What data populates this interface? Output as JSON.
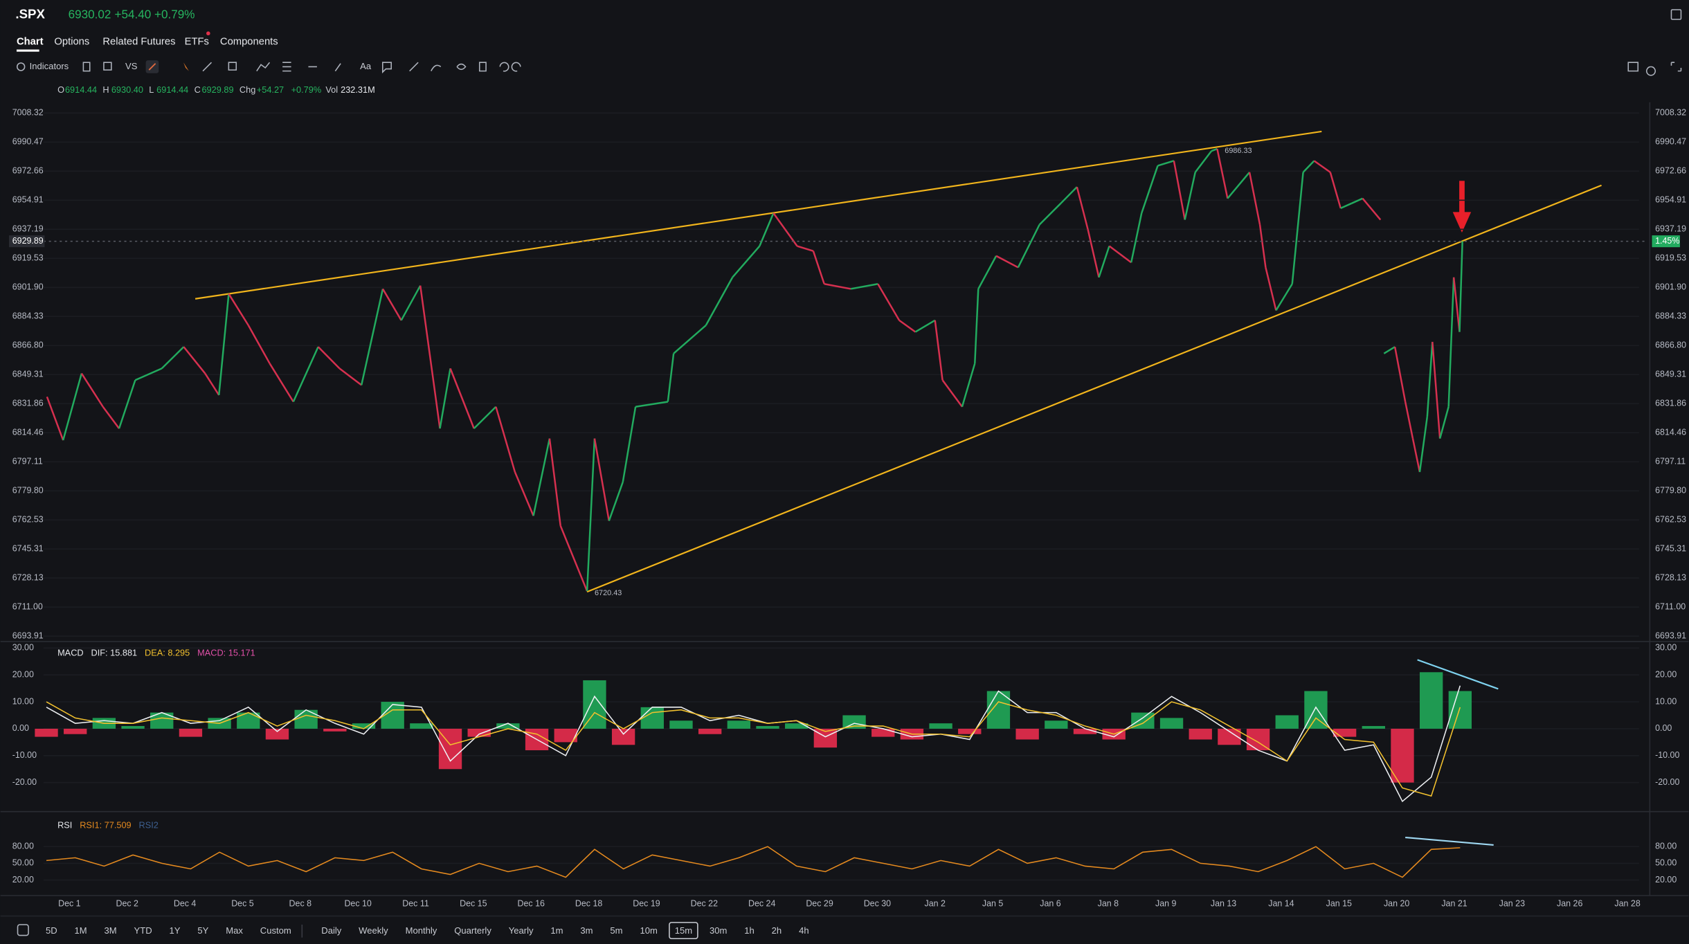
{
  "header": {
    "symbol": ".SPX",
    "price": "6930.02",
    "change": "+54.40",
    "change_pct": "+0.79%"
  },
  "tabs": [
    "Chart",
    "Options",
    "Related Futures",
    "ETFs",
    "Components"
  ],
  "toolbar": {
    "indicators": "Indicators",
    "compare": "VS",
    "text_tool": "Aa"
  },
  "ohlc": {
    "o_label": "O",
    "o": "6914.44",
    "h_label": "H",
    "h": "6930.40",
    "l_label": "L",
    "l": "6914.44",
    "c_label": "C",
    "c": "6929.89",
    "chg_label": "Chg",
    "chg": "+54.27",
    "chg_pct": "+0.79%",
    "vol_label": "Vol",
    "vol": "232.31M"
  },
  "ranges": [
    "5D",
    "1M",
    "3M",
    "YTD",
    "1Y",
    "5Y",
    "Max",
    "Custom"
  ],
  "periods": [
    "Daily",
    "Weekly",
    "Monthly",
    "Quarterly",
    "Yearly",
    "1m",
    "3m",
    "5m",
    "10m",
    "15m",
    "30m",
    "1h",
    "2h",
    "4h"
  ],
  "selected_period": "15m",
  "chart_data": [
    {
      "type": "line",
      "log_scale": true,
      "grid": true,
      "up_color": "#22ab5f",
      "down_color": "#d6304f",
      "xlim": [
        -0.45,
        27.35
      ],
      "xticks": [
        {
          "value": 0,
          "label": "Dec 1"
        },
        {
          "value": 1,
          "label": "Dec 2"
        },
        {
          "value": 2,
          "label": "Dec 4"
        },
        {
          "value": 3,
          "label": "Dec 5"
        },
        {
          "value": 4,
          "label": "Dec 8"
        },
        {
          "value": 5,
          "label": "Dec 10"
        },
        {
          "value": 6,
          "label": "Dec 11"
        },
        {
          "value": 7,
          "label": "Dec 15"
        },
        {
          "value": 8,
          "label": "Dec 16"
        },
        {
          "value": 9,
          "label": "Dec 18"
        },
        {
          "value": 10,
          "label": "Dec 19"
        },
        {
          "value": 11,
          "label": "Dec 22"
        },
        {
          "value": 12,
          "label": "Dec 24"
        },
        {
          "value": 13,
          "label": "Dec 29"
        },
        {
          "value": 14,
          "label": "Dec 30"
        },
        {
          "value": 15,
          "label": "Jan 2"
        },
        {
          "value": 16,
          "label": "Jan 5"
        },
        {
          "value": 17,
          "label": "Jan 6"
        },
        {
          "value": 18,
          "label": "Jan 8"
        },
        {
          "value": 19,
          "label": "Jan 9"
        },
        {
          "value": 20,
          "label": "Jan 13"
        },
        {
          "value": 21,
          "label": "Jan 14"
        },
        {
          "value": 22,
          "label": "Jan 15"
        },
        {
          "value": 23,
          "label": "Jan 20"
        },
        {
          "value": 24,
          "label": "Jan 21"
        },
        {
          "value": 25,
          "label": "Jan 23"
        },
        {
          "value": 26,
          "label": "Jan 26"
        },
        {
          "value": 27,
          "label": "Jan 28"
        }
      ],
      "ylim": [
        6693.91,
        7008.32
      ],
      "yticks": [
        {
          "value": 7008.32,
          "label": "7008.32"
        },
        {
          "value": 6990.47,
          "label": "6990.47"
        },
        {
          "value": 6972.66,
          "label": "6972.66"
        },
        {
          "value": 6954.91,
          "label": "6954.91"
        },
        {
          "value": 6937.19,
          "label": "6937.19"
        },
        {
          "value": 6919.53,
          "label": "6919.53"
        },
        {
          "value": 6901.9,
          "label": "6901.90"
        },
        {
          "value": 6884.33,
          "label": "6884.33"
        },
        {
          "value": 6866.8,
          "label": "6866.80"
        },
        {
          "value": 6849.31,
          "label": "6849.31"
        },
        {
          "value": 6831.86,
          "label": "6831.86"
        },
        {
          "value": 6814.46,
          "label": "6814.46"
        },
        {
          "value": 6797.11,
          "label": "6797.11"
        },
        {
          "value": 6779.8,
          "label": "6779.80"
        },
        {
          "value": 6762.53,
          "label": "6762.53"
        },
        {
          "value": 6745.31,
          "label": "6745.31"
        },
        {
          "value": 6728.13,
          "label": "6728.13"
        },
        {
          "value": 6711.0,
          "label": "6711.00"
        },
        {
          "value": 6693.91,
          "label": "6693.91"
        }
      ],
      "x": [
        -0.39,
        -0.11,
        0.21,
        0.58,
        0.86,
        1.14,
        1.6,
        1.98,
        2.35,
        2.59,
        2.76,
        3.1,
        3.47,
        3.88,
        4.31,
        4.68,
        5.06,
        5.43,
        5.75,
        6.08,
        6.42,
        6.6,
        7.01,
        7.39,
        7.72,
        8.04,
        8.32,
        8.51,
        8.97,
        9.1,
        9.35,
        9.59,
        9.81,
        10.37,
        10.47,
        11.03,
        11.49,
        11.96,
        12.2,
        12.61,
        12.89,
        13.08,
        13.54,
        14.01,
        14.38,
        14.66,
        15.0,
        15.13,
        15.47,
        15.69,
        15.75,
        16.06,
        16.44,
        16.81,
        17.18,
        17.46,
        17.65,
        17.84,
        18.02,
        18.4,
        18.58,
        18.86,
        19.14,
        19.33,
        19.51,
        19.79,
        19.89,
        20.07,
        20.45,
        20.63,
        20.73,
        20.91,
        21.19,
        21.38,
        21.57,
        21.85,
        22.03,
        22.22,
        22.41,
        22.72,
        22.75,
        22.78,
        22.97,
        23.15,
        23.28,
        23.4,
        23.53,
        23.62,
        23.75,
        23.9,
        23.99,
        24.09,
        24.14
      ],
      "values": [
        6836,
        6810,
        6850,
        6830,
        6817,
        6846,
        6853,
        6866,
        6850,
        6837,
        6898,
        6879,
        6856,
        6833,
        6866,
        6853,
        6843,
        6901,
        6882,
        6903,
        6817,
        6853,
        6817,
        6830,
        6791,
        6765,
        6811,
        6759,
        6720.43,
        6811,
        6762,
        6785,
        6830,
        6833,
        6862,
        6879,
        6908,
        6927,
        6947,
        6927,
        6924,
        6904,
        6901,
        6904,
        6882,
        6875,
        6882,
        6846,
        6830,
        6856,
        6901,
        6921,
        6914,
        6940,
        6953,
        6963,
        6937,
        6908,
        6927,
        6917,
        6947,
        6976,
        6979,
        6943,
        6972,
        6985,
        6986.33,
        6956,
        6972,
        6940,
        6914,
        6888,
        6904,
        6972,
        6979,
        6972,
        6950,
        6953,
        6956,
        6943,
        null,
        6862,
        6866,
        6833,
        6811,
        6791,
        6824,
        6869,
        6811,
        6830,
        6908,
        6875,
        6929.89
      ],
      "point_labels": [
        {
          "value": 6720.43,
          "x": 8.97
        },
        {
          "value": 6986.33,
          "x": 19.89
        }
      ],
      "trendlines": [
        {
          "x": [
            2.18,
            21.7
          ],
          "y": [
            6895,
            6997
          ],
          "color": "#f2b51c"
        },
        {
          "x": [
            8.97,
            26.55
          ],
          "y": [
            6720,
            6964
          ],
          "color": "#f2b51c"
        }
      ],
      "last": {
        "value": 6929.89,
        "change_label": "1.45%"
      }
    },
    {
      "type": "macd",
      "grid": true,
      "xlim": [
        -0.45,
        27.35
      ],
      "ylim": [
        -30,
        32
      ],
      "yticks": [
        {
          "value": 30,
          "label": "30.00"
        },
        {
          "value": 20,
          "label": "20.00"
        },
        {
          "value": 10,
          "label": "10.00"
        },
        {
          "value": 0,
          "label": "0.00"
        },
        {
          "value": -10,
          "label": "-10.00"
        },
        {
          "value": -20,
          "label": "-20.00"
        }
      ],
      "legend": [
        {
          "text": "MACD",
          "color": "#e6e8ec"
        },
        {
          "text": "DIF: 15.881",
          "color": "#e6e8ec"
        },
        {
          "text": "DEA: 8.295",
          "color": "#f2c12e"
        },
        {
          "text": "MACD: 15.171",
          "color": "#e050a8"
        }
      ],
      "x": [
        -0.4,
        0.1,
        0.6,
        1.1,
        1.6,
        2.1,
        2.6,
        3.1,
        3.6,
        4.1,
        4.6,
        5.1,
        5.6,
        6.1,
        6.6,
        7.1,
        7.6,
        8.1,
        8.6,
        9.1,
        9.6,
        10.1,
        10.6,
        11.1,
        11.6,
        12.1,
        12.6,
        13.1,
        13.6,
        14.1,
        14.6,
        15.1,
        15.6,
        16.1,
        16.6,
        17.1,
        17.6,
        18.1,
        18.6,
        19.1,
        19.6,
        20.1,
        20.6,
        21.1,
        21.6,
        22.1,
        22.6,
        23.1,
        23.6,
        24.1
      ],
      "histogram": [
        -3,
        -2,
        4,
        1,
        6,
        -3,
        4,
        6,
        -4,
        7,
        -1,
        2,
        10,
        2,
        -15,
        -3,
        2,
        -8,
        -5,
        18,
        -6,
        8,
        3,
        -2,
        3,
        1,
        2,
        -7,
        5,
        -3,
        -4,
        2,
        -2,
        14,
        -4,
        3,
        -2,
        -4,
        6,
        4,
        -4,
        -6,
        -8,
        5,
        14,
        -3,
        1,
        -20,
        21,
        14
      ],
      "hist_up_color": "#1f9a52",
      "hist_down_color": "#d42a48",
      "series": [
        {
          "color": "#eef0f3",
          "values": [
            8,
            2,
            3,
            2,
            6,
            2,
            3,
            8,
            -1,
            7,
            2,
            -2,
            9,
            8,
            -12,
            -2,
            2,
            -4,
            -10,
            12,
            -2,
            8,
            8,
            3,
            5,
            2,
            3,
            -3,
            2,
            0,
            -3,
            -2,
            -4,
            14,
            6,
            6,
            0,
            -3,
            4,
            12,
            6,
            -1,
            -8,
            -12,
            8,
            -8,
            -6,
            -27,
            -18,
            16
          ]
        },
        {
          "color": "#f2c12e",
          "values": [
            10,
            4,
            2,
            2,
            4,
            3,
            2,
            6,
            1,
            5,
            3,
            0,
            7,
            7,
            -6,
            -3,
            0,
            -2,
            -8,
            6,
            0,
            6,
            7,
            4,
            4,
            2,
            3,
            -1,
            1,
            1,
            -2,
            -2,
            -3,
            10,
            7,
            5,
            1,
            -2,
            2,
            10,
            7,
            1,
            -5,
            -12,
            4,
            -4,
            -5,
            -22,
            -25,
            8
          ]
        }
      ],
      "trendlines": [
        {
          "x": [
            23.36,
            24.76
          ],
          "y": [
            25.6,
            14.8
          ],
          "color": "#7fd3f0"
        }
      ]
    },
    {
      "type": "rsi",
      "grid": true,
      "xlim": [
        -0.45,
        27.35
      ],
      "ylim": [
        -4,
        137
      ],
      "yticks": [
        {
          "value": 80,
          "label": "80.00"
        },
        {
          "value": 50,
          "label": "50.00"
        },
        {
          "value": 20,
          "label": "20.00"
        }
      ],
      "legend": [
        {
          "text": "RSI",
          "color": "#e6e8ec"
        },
        {
          "text": "RSI1: 77.509",
          "color": "#e58a1f"
        },
        {
          "text": "RSI2",
          "color": "#3d5f8f"
        }
      ],
      "x": [
        -0.4,
        0.1,
        0.6,
        1.1,
        1.6,
        2.1,
        2.6,
        3.1,
        3.6,
        4.1,
        4.6,
        5.1,
        5.6,
        6.1,
        6.6,
        7.1,
        7.6,
        8.1,
        8.6,
        9.1,
        9.6,
        10.1,
        10.6,
        11.1,
        11.6,
        12.1,
        12.6,
        13.1,
        13.6,
        14.1,
        14.6,
        15.1,
        15.6,
        16.1,
        16.6,
        17.1,
        17.6,
        18.1,
        18.6,
        19.1,
        19.6,
        20.1,
        20.6,
        21.1,
        21.6,
        22.1,
        22.6,
        23.1,
        23.6,
        24.1
      ],
      "series": [
        {
          "color": "#e58a1f",
          "values": [
            55,
            60,
            45,
            65,
            50,
            40,
            70,
            45,
            55,
            35,
            60,
            55,
            70,
            40,
            30,
            50,
            35,
            45,
            25,
            75,
            40,
            65,
            55,
            45,
            60,
            80,
            45,
            35,
            60,
            50,
            40,
            55,
            45,
            75,
            50,
            60,
            45,
            40,
            70,
            75,
            50,
            45,
            35,
            55,
            80,
            40,
            50,
            25,
            75,
            78
          ]
        }
      ],
      "trendlines": [
        {
          "x": [
            23.15,
            24.68
          ],
          "y": [
            96.4,
            82.9
          ],
          "color": "#9fd8f2"
        }
      ]
    }
  ]
}
